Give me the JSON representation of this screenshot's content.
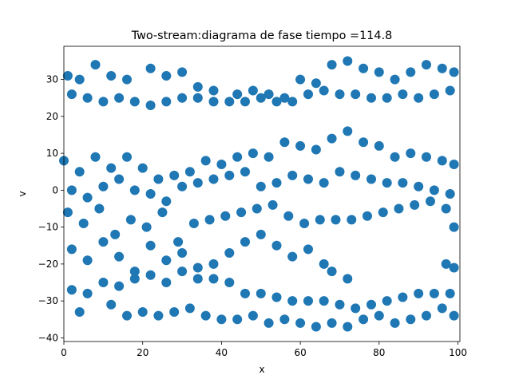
{
  "chart_data": {
    "type": "scatter",
    "title": "Two-stream:diagrama de fase  tiempo =114.8",
    "xlabel": "x",
    "ylabel": "v",
    "xlim": [
      0,
      100.5
    ],
    "ylim": [
      -41,
      39
    ],
    "xticks": [
      0,
      20,
      40,
      60,
      80,
      100
    ],
    "yticks": [
      -40,
      -30,
      -20,
      -10,
      0,
      10,
      20,
      30
    ],
    "xtick_labels": [
      "0",
      "20",
      "40",
      "60",
      "80",
      "100"
    ],
    "ytick_labels": [
      "−40",
      "−30",
      "−20",
      "−10",
      "0",
      "10",
      "20",
      "30"
    ],
    "grid": false,
    "color": "#1f77b4",
    "series": [
      {
        "points": [
          [
            1,
            31
          ],
          [
            4,
            30
          ],
          [
            8,
            34
          ],
          [
            12,
            31
          ],
          [
            16,
            30
          ],
          [
            22,
            33
          ],
          [
            26,
            31
          ],
          [
            30,
            32
          ],
          [
            34,
            28
          ],
          [
            38,
            27
          ],
          [
            44,
            26
          ],
          [
            48,
            27
          ],
          [
            52,
            26
          ],
          [
            56,
            25
          ],
          [
            60,
            30
          ],
          [
            64,
            29
          ],
          [
            68,
            34
          ],
          [
            72,
            35
          ],
          [
            76,
            33
          ],
          [
            80,
            32
          ],
          [
            84,
            30
          ],
          [
            88,
            32
          ],
          [
            92,
            34
          ],
          [
            96,
            33
          ],
          [
            99,
            32
          ],
          [
            2,
            26
          ],
          [
            6,
            25
          ],
          [
            10,
            24
          ],
          [
            14,
            25
          ],
          [
            18,
            24
          ],
          [
            22,
            23
          ],
          [
            26,
            24
          ],
          [
            30,
            25
          ],
          [
            34,
            25
          ],
          [
            38,
            24
          ],
          [
            42,
            24
          ],
          [
            46,
            24
          ],
          [
            50,
            25
          ],
          [
            54,
            24
          ],
          [
            58,
            24
          ],
          [
            62,
            26
          ],
          [
            66,
            27
          ],
          [
            70,
            26
          ],
          [
            74,
            26
          ],
          [
            78,
            25
          ],
          [
            82,
            25
          ],
          [
            86,
            26
          ],
          [
            90,
            25
          ],
          [
            94,
            26
          ],
          [
            98,
            27
          ],
          [
            0,
            8
          ],
          [
            4,
            5
          ],
          [
            8,
            9
          ],
          [
            12,
            6
          ],
          [
            16,
            9
          ],
          [
            20,
            6
          ],
          [
            24,
            3
          ],
          [
            28,
            4
          ],
          [
            32,
            5
          ],
          [
            36,
            8
          ],
          [
            40,
            7
          ],
          [
            44,
            9
          ],
          [
            48,
            10
          ],
          [
            52,
            9
          ],
          [
            56,
            13
          ],
          [
            60,
            12
          ],
          [
            64,
            11
          ],
          [
            68,
            14
          ],
          [
            72,
            16
          ],
          [
            76,
            13
          ],
          [
            80,
            12
          ],
          [
            84,
            9
          ],
          [
            88,
            10
          ],
          [
            92,
            9
          ],
          [
            96,
            8
          ],
          [
            99,
            7
          ],
          [
            2,
            0
          ],
          [
            6,
            -2
          ],
          [
            10,
            1
          ],
          [
            14,
            3
          ],
          [
            18,
            0
          ],
          [
            22,
            -1
          ],
          [
            26,
            -3
          ],
          [
            30,
            1
          ],
          [
            34,
            2
          ],
          [
            38,
            3
          ],
          [
            42,
            4
          ],
          [
            46,
            5
          ],
          [
            50,
            1
          ],
          [
            54,
            2
          ],
          [
            58,
            4
          ],
          [
            62,
            3
          ],
          [
            66,
            2
          ],
          [
            70,
            5
          ],
          [
            74,
            4
          ],
          [
            78,
            3
          ],
          [
            82,
            2
          ],
          [
            86,
            2
          ],
          [
            90,
            1
          ],
          [
            94,
            0
          ],
          [
            98,
            -1
          ],
          [
            1,
            -6
          ],
          [
            5,
            -9
          ],
          [
            9,
            -5
          ],
          [
            13,
            -12
          ],
          [
            17,
            -8
          ],
          [
            21,
            -10
          ],
          [
            25,
            -6
          ],
          [
            29,
            -14
          ],
          [
            33,
            -9
          ],
          [
            37,
            -8
          ],
          [
            41,
            -7
          ],
          [
            45,
            -6
          ],
          [
            49,
            -5
          ],
          [
            53,
            -4
          ],
          [
            57,
            -7
          ],
          [
            61,
            -9
          ],
          [
            65,
            -8
          ],
          [
            69,
            -8
          ],
          [
            73,
            -8
          ],
          [
            77,
            -7
          ],
          [
            81,
            -6
          ],
          [
            85,
            -5
          ],
          [
            89,
            -4
          ],
          [
            93,
            -3
          ],
          [
            97,
            -5
          ],
          [
            99,
            -10
          ],
          [
            2,
            -16
          ],
          [
            6,
            -19
          ],
          [
            10,
            -14
          ],
          [
            14,
            -18
          ],
          [
            18,
            -22
          ],
          [
            22,
            -15
          ],
          [
            26,
            -19
          ],
          [
            30,
            -17
          ],
          [
            34,
            -21
          ],
          [
            38,
            -20
          ],
          [
            42,
            -17
          ],
          [
            46,
            -14
          ],
          [
            50,
            -12
          ],
          [
            54,
            -15
          ],
          [
            58,
            -18
          ],
          [
            62,
            -16
          ],
          [
            66,
            -20
          ],
          [
            68,
            -22
          ],
          [
            72,
            -24
          ],
          [
            97,
            -20
          ],
          [
            99,
            -21
          ],
          [
            2,
            -27
          ],
          [
            6,
            -28
          ],
          [
            10,
            -25
          ],
          [
            14,
            -26
          ],
          [
            18,
            -24
          ],
          [
            22,
            -23
          ],
          [
            26,
            -25
          ],
          [
            30,
            -22
          ],
          [
            34,
            -24
          ],
          [
            38,
            -24
          ],
          [
            42,
            -25
          ],
          [
            46,
            -28
          ],
          [
            50,
            -28
          ],
          [
            54,
            -29
          ],
          [
            58,
            -30
          ],
          [
            62,
            -30
          ],
          [
            66,
            -30
          ],
          [
            70,
            -31
          ],
          [
            74,
            -32
          ],
          [
            78,
            -31
          ],
          [
            82,
            -30
          ],
          [
            86,
            -29
          ],
          [
            90,
            -28
          ],
          [
            94,
            -28
          ],
          [
            98,
            -28
          ],
          [
            4,
            -33
          ],
          [
            12,
            -31
          ],
          [
            16,
            -34
          ],
          [
            20,
            -33
          ],
          [
            24,
            -34
          ],
          [
            28,
            -33
          ],
          [
            32,
            -32
          ],
          [
            36,
            -34
          ],
          [
            40,
            -35
          ],
          [
            44,
            -35
          ],
          [
            48,
            -34
          ],
          [
            52,
            -36
          ],
          [
            56,
            -35
          ],
          [
            60,
            -36
          ],
          [
            64,
            -37
          ],
          [
            68,
            -36
          ],
          [
            72,
            -37
          ],
          [
            76,
            -35
          ],
          [
            80,
            -34
          ],
          [
            84,
            -36
          ],
          [
            88,
            -35
          ],
          [
            92,
            -34
          ],
          [
            96,
            -32
          ],
          [
            99,
            -34
          ]
        ]
      }
    ]
  }
}
